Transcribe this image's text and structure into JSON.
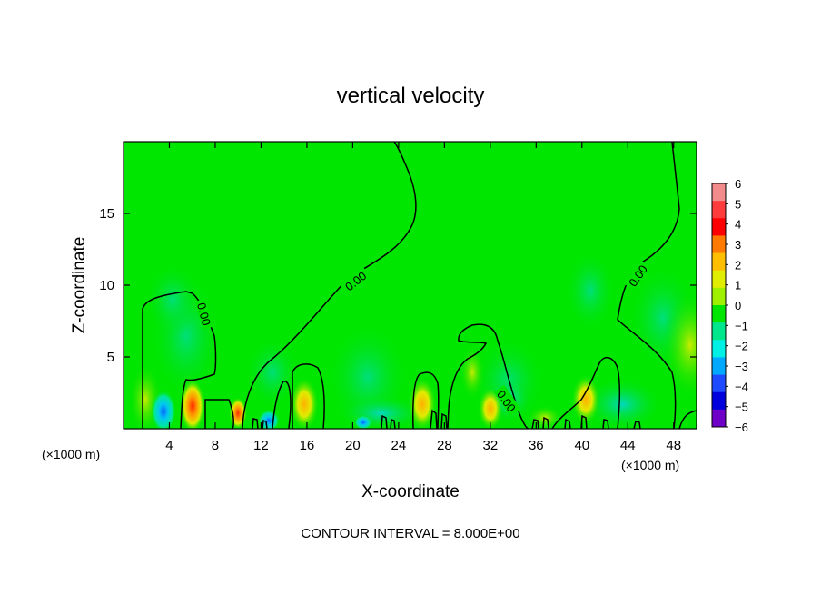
{
  "chart_data": {
    "type": "heatmap",
    "title": "vertical velocity",
    "xlabel": "X-coordinate",
    "ylabel": "Z-coordinate",
    "x_unit_label": "(×1000 m)",
    "x_unit_label_right": "(×1000 m)",
    "xlim": [
      0,
      50
    ],
    "ylim": [
      0,
      20
    ],
    "x_ticks": [
      4,
      8,
      12,
      16,
      20,
      24,
      28,
      32,
      36,
      40,
      44,
      48
    ],
    "y_ticks": [
      5,
      10,
      15
    ],
    "contour_interval_text": "CONTOUR INTERVAL = 8.000E+00",
    "contour_label": "0.00",
    "colorbar": {
      "levels": [
        6,
        5,
        4,
        3,
        2,
        1,
        0,
        -1,
        -2,
        -3,
        -4,
        -5,
        -6
      ],
      "labels": [
        "6",
        "5",
        "4",
        "3",
        "2",
        "1",
        "0",
        "−1",
        "−2",
        "−3",
        "−4",
        "−5",
        "−6"
      ],
      "colors": [
        "#f28c8c",
        "#ff3c3c",
        "#ff0000",
        "#ff7a00",
        "#ffbf00",
        "#e0ec00",
        "#9ef000",
        "#00e600",
        "#00e68c",
        "#00f0e6",
        "#00a8ff",
        "#1e4bff",
        "#0000dd",
        "#6e00c8"
      ]
    },
    "background_value": 0,
    "features": [
      {
        "x": 3.5,
        "z": 1.3,
        "value": -3
      },
      {
        "x": 6.0,
        "z": 1.6,
        "value": 4
      },
      {
        "x": 10.0,
        "z": 1.0,
        "value": 3
      },
      {
        "x": 16.0,
        "z": 1.2,
        "value": 2
      },
      {
        "x": 21.0,
        "z": 0.5,
        "value": -2
      },
      {
        "x": 26.0,
        "z": 1.2,
        "value": 2
      },
      {
        "x": 32.0,
        "z": 1.0,
        "value": 2
      },
      {
        "x": 41.0,
        "z": 1.5,
        "value": 2
      },
      {
        "x": 45.0,
        "z": 1.0,
        "value": -1
      }
    ]
  }
}
